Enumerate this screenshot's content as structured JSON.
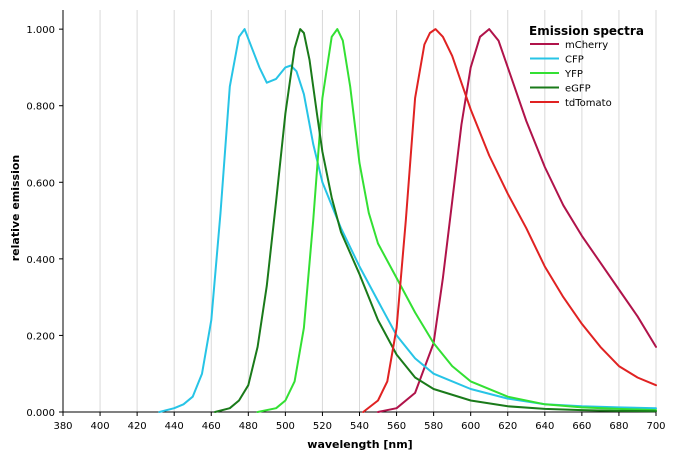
{
  "chart_data": {
    "type": "line",
    "title": "",
    "xlabel": "wavelength [nm]",
    "ylabel": "relative emission",
    "xlim": [
      380,
      700
    ],
    "ylim": [
      0,
      1.05
    ],
    "xticks": [
      380,
      400,
      420,
      440,
      460,
      480,
      500,
      520,
      540,
      560,
      580,
      600,
      620,
      640,
      660,
      680,
      700
    ],
    "yticks": [
      0,
      0.2,
      0.4,
      0.6,
      0.8,
      1.0
    ],
    "ytick_labels": [
      "0.000",
      "0.200",
      "0.400",
      "0.600",
      "0.800",
      "1.000"
    ],
    "grid": "vertical",
    "legend": {
      "title": "Emission spectra",
      "placement": "top-right",
      "entries": [
        "mCherry",
        "CFP",
        "YFP",
        "eGFP",
        "tdTomato"
      ]
    },
    "series": [
      {
        "name": "mCherry",
        "color": "#b0134a",
        "x": [
          550,
          560,
          570,
          580,
          585,
          590,
          595,
          600,
          605,
          610,
          615,
          620,
          630,
          640,
          650,
          660,
          670,
          680,
          690,
          700
        ],
        "y": [
          0.0,
          0.01,
          0.05,
          0.18,
          0.35,
          0.55,
          0.75,
          0.9,
          0.98,
          1.0,
          0.97,
          0.9,
          0.76,
          0.64,
          0.54,
          0.46,
          0.39,
          0.32,
          0.25,
          0.17
        ]
      },
      {
        "name": "CFP",
        "color": "#27c4e6",
        "x": [
          432,
          440,
          445,
          450,
          455,
          460,
          465,
          470,
          475,
          478,
          482,
          486,
          490,
          495,
          500,
          503,
          506,
          510,
          515,
          520,
          530,
          540,
          550,
          560,
          570,
          580,
          600,
          620,
          640,
          660,
          680,
          700
        ],
        "y": [
          0.0,
          0.01,
          0.02,
          0.04,
          0.1,
          0.24,
          0.52,
          0.85,
          0.98,
          1.0,
          0.95,
          0.9,
          0.86,
          0.87,
          0.9,
          0.905,
          0.89,
          0.83,
          0.7,
          0.6,
          0.48,
          0.38,
          0.29,
          0.2,
          0.14,
          0.1,
          0.06,
          0.035,
          0.02,
          0.015,
          0.012,
          0.01
        ]
      },
      {
        "name": "YFP",
        "color": "#33e033",
        "x": [
          485,
          495,
          500,
          505,
          510,
          515,
          520,
          525,
          528,
          531,
          535,
          540,
          545,
          550,
          560,
          570,
          580,
          590,
          600,
          620,
          640,
          660,
          680,
          700
        ],
        "y": [
          0.0,
          0.01,
          0.03,
          0.08,
          0.22,
          0.5,
          0.82,
          0.98,
          1.0,
          0.97,
          0.85,
          0.65,
          0.52,
          0.44,
          0.35,
          0.26,
          0.18,
          0.12,
          0.08,
          0.04,
          0.02,
          0.012,
          0.008,
          0.005
        ]
      },
      {
        "name": "eGFP",
        "color": "#1a7a1a",
        "x": [
          462,
          470,
          475,
          480,
          485,
          490,
          495,
          500,
          505,
          508,
          510,
          513,
          517,
          520,
          525,
          530,
          540,
          550,
          560,
          570,
          580,
          600,
          620,
          640,
          660,
          680,
          700
        ],
        "y": [
          0.0,
          0.01,
          0.03,
          0.07,
          0.17,
          0.33,
          0.55,
          0.78,
          0.95,
          1.0,
          0.99,
          0.92,
          0.78,
          0.68,
          0.56,
          0.47,
          0.36,
          0.24,
          0.15,
          0.09,
          0.06,
          0.03,
          0.015,
          0.008,
          0.005,
          0.003,
          0.002
        ]
      },
      {
        "name": "tdTomato",
        "color": "#e02222",
        "x": [
          542,
          550,
          555,
          560,
          565,
          570,
          575,
          578,
          581,
          585,
          590,
          595,
          600,
          610,
          620,
          630,
          640,
          650,
          660,
          670,
          680,
          690,
          700
        ],
        "y": [
          0.0,
          0.03,
          0.08,
          0.22,
          0.5,
          0.82,
          0.96,
          0.99,
          1.0,
          0.98,
          0.93,
          0.86,
          0.79,
          0.67,
          0.57,
          0.48,
          0.38,
          0.3,
          0.23,
          0.17,
          0.12,
          0.09,
          0.07
        ]
      }
    ]
  }
}
